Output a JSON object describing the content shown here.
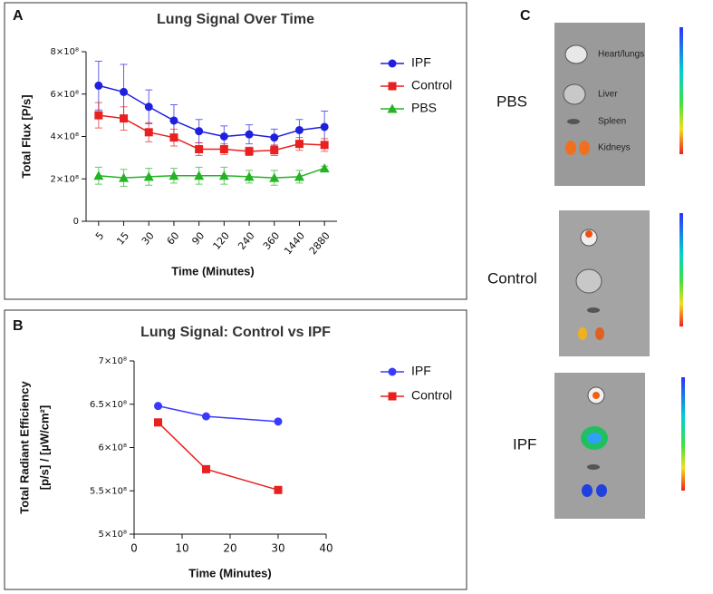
{
  "chart_data": [
    {
      "type": "line",
      "panel": "A",
      "title": "Lung Signal Over Time",
      "x_label": "Time (Minutes)",
      "y_label": [
        "Total Flux [P/s]"
      ],
      "categories": [
        "5",
        "15",
        "30",
        "60",
        "90",
        "120",
        "240",
        "360",
        "1440",
        "2880"
      ],
      "ylim": [
        0,
        800000000
      ],
      "yticks": [
        0,
        {
          "value": 200000000,
          "label": "2×10⁸"
        },
        {
          "value": 400000000,
          "label": "4×10⁸"
        },
        {
          "value": 600000000,
          "label": "6×10⁸"
        },
        {
          "value": 800000000,
          "label": "8×10⁸"
        }
      ],
      "legend": "right",
      "series": [
        {
          "name": "IPF",
          "color": "#1f1fe0",
          "marker": "circle",
          "values": [
            640000000,
            610000000,
            540000000,
            475000000,
            425000000,
            400000000,
            410000000,
            395000000,
            430000000,
            445000000
          ],
          "errors": [
            115000000,
            130000000,
            80000000,
            75000000,
            55000000,
            50000000,
            45000000,
            40000000,
            50000000,
            75000000
          ]
        },
        {
          "name": "Control",
          "color": "#e8201f",
          "marker": "square",
          "values": [
            500000000,
            485000000,
            420000000,
            395000000,
            340000000,
            340000000,
            330000000,
            335000000,
            365000000,
            360000000
          ],
          "errors": [
            60000000,
            55000000,
            45000000,
            40000000,
            30000000,
            25000000,
            20000000,
            25000000,
            30000000,
            30000000
          ]
        },
        {
          "name": "PBS",
          "color": "#22b422",
          "marker": "triangle",
          "values": [
            215000000,
            205000000,
            210000000,
            215000000,
            215000000,
            215000000,
            210000000,
            205000000,
            210000000,
            250000000
          ],
          "errors": [
            40000000,
            40000000,
            40000000,
            35000000,
            40000000,
            40000000,
            30000000,
            35000000,
            30000000,
            10000000
          ]
        }
      ]
    },
    {
      "type": "line",
      "panel": "B",
      "title": "Lung Signal: Control vs IPF",
      "x_label": "Time (Minutes)",
      "y_label": [
        "Total Radiant Efficiency",
        "[p/s] / [µW/cm²]"
      ],
      "x": [
        5,
        15,
        30
      ],
      "xlim": [
        0,
        40
      ],
      "xticks": [
        0,
        10,
        20,
        30,
        40
      ],
      "ylim": [
        500000000,
        700000000
      ],
      "yticks": [
        {
          "value": 500000000,
          "label": "5×10⁸"
        },
        {
          "value": 550000000,
          "label": "5.5×10⁸"
        },
        {
          "value": 600000000,
          "label": "6×10⁸"
        },
        {
          "value": 650000000,
          "label": "6.5×10⁸"
        },
        {
          "value": 700000000,
          "label": "7×10⁸"
        }
      ],
      "legend": "right",
      "series": [
        {
          "name": "IPF",
          "color": "#3a3aff",
          "marker": "circle",
          "values": [
            648000000,
            636000000,
            630000000
          ]
        },
        {
          "name": "Control",
          "color": "#e8201f",
          "marker": "square",
          "values": [
            629000000,
            575000000,
            551000000
          ]
        }
      ]
    }
  ],
  "panel_c": {
    "label": "C",
    "groups": [
      "PBS",
      "Control",
      "IPF"
    ],
    "organs": [
      "Heart/lungs",
      "Liver",
      "Spleen",
      "Kidneys"
    ]
  }
}
